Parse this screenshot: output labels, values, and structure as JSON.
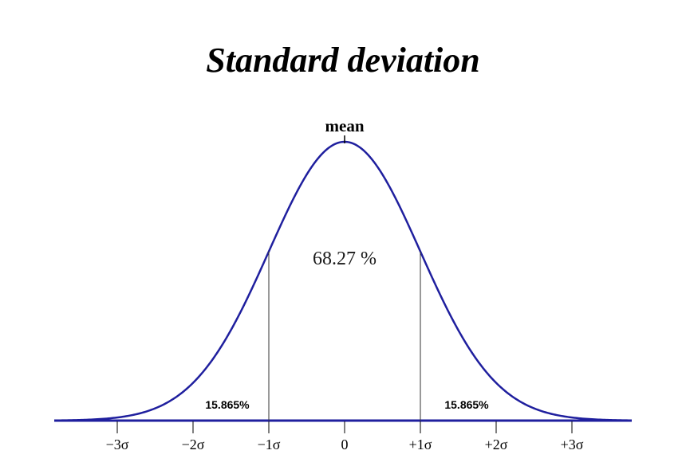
{
  "title": "Standard deviation",
  "mean_label": "mean",
  "center_area_label": "68.27 %",
  "left_tail_label": "15.865%",
  "right_tail_label": "15.865%",
  "colors": {
    "curve": "#1f1f9e",
    "axis": "#1f1f9e",
    "divider": "#333333"
  },
  "chart_data": {
    "type": "line",
    "curve": "normal-distribution",
    "mean": 0,
    "sd": 1,
    "xlim": [
      -3.8,
      3.8
    ],
    "markers_at_sigma": [
      -1,
      1
    ],
    "tick_values": [
      -3,
      -2,
      -1,
      0,
      1,
      2,
      3
    ],
    "tick_labels": [
      "−3σ",
      "−2σ",
      "−1σ",
      "0",
      "+1σ",
      "+2σ",
      "+3σ"
    ],
    "grid": false,
    "legend": "none"
  }
}
